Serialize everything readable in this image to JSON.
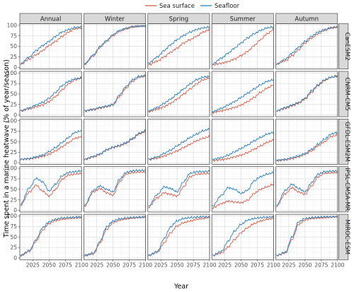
{
  "chart_data": {
    "type": "line",
    "xlabel": "Year",
    "ylabel": "Time spent in a marine heatwave (% of year/season)",
    "xlim": [
      2005,
      2100
    ],
    "ylim": [
      -4,
      104
    ],
    "x_ticks": [
      "2025",
      "2050",
      "2075",
      "2100"
    ],
    "y_ticks": [
      "0",
      "25",
      "50",
      "75",
      "100"
    ],
    "grid": true,
    "legend_position": "top",
    "legend": [
      {
        "name": "Sea surface",
        "color": "#d6604d"
      },
      {
        "name": "Seafloor",
        "color": "#2c7fb8"
      }
    ],
    "columns": [
      "Annual",
      "Winter",
      "Spring",
      "Summer",
      "Autumn"
    ],
    "rows": [
      "CanESM2",
      "CNRM-CM5",
      "GFDL-ESM2M",
      "IPSL-CM5A-MR",
      "MIROC-ESM"
    ],
    "x_knots": [
      2006,
      2020,
      2030,
      2040,
      2050,
      2060,
      2070,
      2080,
      2090,
      2100
    ],
    "panels": [
      [
        {
          "surface": [
            8,
            20,
            30,
            40,
            52,
            62,
            74,
            84,
            92,
            94
          ],
          "seafloor": [
            9,
            25,
            40,
            52,
            62,
            74,
            84,
            90,
            95,
            96
          ]
        },
        {
          "surface": [
            8,
            28,
            48,
            62,
            76,
            86,
            92,
            96,
            98,
            99
          ],
          "seafloor": [
            8,
            30,
            50,
            64,
            78,
            88,
            93,
            97,
            98,
            99
          ]
        },
        {
          "surface": [
            6,
            15,
            25,
            36,
            46,
            58,
            66,
            74,
            84,
            90
          ],
          "seafloor": [
            10,
            25,
            40,
            54,
            66,
            76,
            84,
            90,
            94,
            96
          ]
        },
        {
          "surface": [
            6,
            10,
            14,
            20,
            28,
            38,
            52,
            66,
            80,
            90
          ],
          "seafloor": [
            8,
            22,
            34,
            46,
            58,
            70,
            80,
            88,
            94,
            96
          ]
        },
        {
          "surface": [
            8,
            16,
            28,
            42,
            58,
            70,
            80,
            88,
            94,
            96
          ],
          "seafloor": [
            8,
            20,
            34,
            48,
            62,
            74,
            84,
            90,
            94,
            96
          ]
        }
      ],
      [
        {
          "surface": [
            10,
            15,
            20,
            24,
            32,
            44,
            60,
            74,
            84,
            88
          ],
          "seafloor": [
            10,
            17,
            24,
            30,
            40,
            54,
            70,
            80,
            86,
            88
          ]
        },
        {
          "surface": [
            10,
            13,
            17,
            20,
            24,
            44,
            64,
            80,
            90,
            92
          ],
          "seafloor": [
            10,
            14,
            18,
            21,
            26,
            48,
            68,
            84,
            92,
            94
          ]
        },
        {
          "surface": [
            8,
            14,
            20,
            28,
            38,
            50,
            62,
            74,
            84,
            88
          ],
          "seafloor": [
            10,
            18,
            28,
            38,
            50,
            62,
            74,
            84,
            90,
            92
          ]
        },
        {
          "surface": [
            6,
            10,
            14,
            18,
            24,
            32,
            42,
            54,
            64,
            72
          ],
          "seafloor": [
            8,
            16,
            24,
            32,
            42,
            52,
            62,
            72,
            80,
            84
          ]
        },
        {
          "surface": [
            10,
            16,
            22,
            28,
            38,
            54,
            70,
            82,
            90,
            94
          ],
          "seafloor": [
            10,
            18,
            24,
            30,
            40,
            58,
            72,
            84,
            90,
            92
          ]
        }
      ],
      [
        {
          "surface": [
            8,
            9,
            12,
            15,
            20,
            28,
            38,
            48,
            58,
            62
          ],
          "seafloor": [
            8,
            10,
            14,
            18,
            26,
            36,
            48,
            60,
            72,
            76
          ]
        },
        {
          "surface": [
            8,
            14,
            20,
            30,
            36,
            40,
            46,
            56,
            68,
            74
          ],
          "seafloor": [
            8,
            15,
            21,
            31,
            37,
            41,
            48,
            58,
            70,
            76
          ]
        },
        {
          "surface": [
            8,
            11,
            16,
            22,
            28,
            36,
            44,
            52,
            58,
            62
          ],
          "seafloor": [
            8,
            14,
            22,
            30,
            40,
            50,
            60,
            68,
            76,
            80
          ]
        },
        {
          "surface": [
            5,
            7,
            10,
            14,
            18,
            24,
            32,
            40,
            48,
            54
          ],
          "seafloor": [
            8,
            12,
            18,
            26,
            34,
            42,
            52,
            60,
            68,
            72
          ]
        },
        {
          "surface": [
            5,
            7,
            10,
            14,
            20,
            28,
            40,
            50,
            62,
            66
          ],
          "seafloor": [
            6,
            8,
            12,
            16,
            22,
            32,
            44,
            56,
            68,
            72
          ]
        }
      ],
      [
        {
          "surface": [
            12,
            44,
            60,
            46,
            34,
            50,
            74,
            84,
            86,
            88
          ],
          "seafloor": [
            14,
            54,
            76,
            68,
            46,
            62,
            82,
            90,
            92,
            94
          ]
        },
        {
          "surface": [
            10,
            44,
            52,
            42,
            36,
            68,
            86,
            90,
            91,
            91
          ],
          "seafloor": [
            12,
            48,
            58,
            50,
            44,
            74,
            90,
            94,
            95,
            95
          ]
        },
        {
          "surface": [
            8,
            30,
            42,
            38,
            34,
            56,
            80,
            86,
            87,
            88
          ],
          "seafloor": [
            10,
            38,
            56,
            52,
            44,
            68,
            88,
            92,
            92,
            93
          ]
        },
        {
          "surface": [
            6,
            16,
            22,
            20,
            18,
            24,
            40,
            50,
            56,
            62
          ],
          "seafloor": [
            10,
            36,
            54,
            50,
            40,
            48,
            70,
            80,
            86,
            90
          ]
        },
        {
          "surface": [
            10,
            40,
            54,
            44,
            38,
            58,
            80,
            88,
            89,
            90
          ],
          "seafloor": [
            12,
            48,
            62,
            52,
            44,
            66,
            86,
            92,
            93,
            94
          ]
        }
      ],
      [
        {
          "surface": [
            6,
            16,
            40,
            66,
            82,
            89,
            92,
            94,
            95,
            96
          ],
          "seafloor": [
            6,
            18,
            44,
            72,
            86,
            92,
            95,
            96,
            97,
            98
          ]
        },
        {
          "surface": [
            6,
            10,
            36,
            68,
            84,
            90,
            93,
            95,
            96,
            97
          ],
          "seafloor": [
            6,
            12,
            40,
            74,
            88,
            93,
            95,
            96,
            97,
            98
          ]
        },
        {
          "surface": [
            6,
            14,
            36,
            60,
            76,
            84,
            88,
            92,
            94,
            96
          ],
          "seafloor": [
            6,
            16,
            46,
            74,
            88,
            94,
            96,
            97,
            98,
            98
          ]
        },
        {
          "surface": [
            6,
            12,
            26,
            44,
            60,
            72,
            82,
            88,
            92,
            94
          ],
          "seafloor": [
            6,
            16,
            40,
            64,
            80,
            90,
            94,
            96,
            97,
            98
          ]
        },
        {
          "surface": [
            6,
            12,
            44,
            80,
            90,
            94,
            95,
            96,
            97,
            98
          ],
          "seafloor": [
            6,
            14,
            50,
            86,
            94,
            96,
            97,
            98,
            98,
            99
          ]
        }
      ]
    ]
  }
}
